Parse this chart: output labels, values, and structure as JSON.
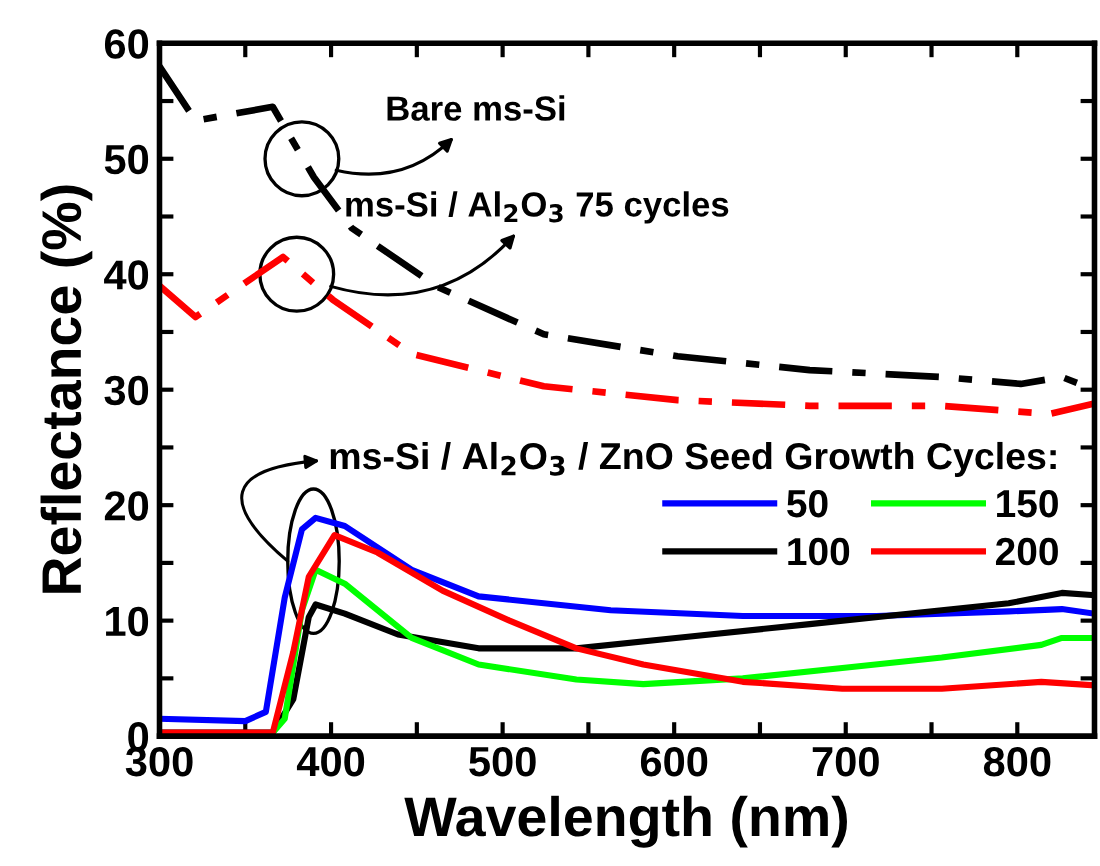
{
  "chart_data": {
    "type": "line",
    "xlabel": "Wavelength (nm)",
    "ylabel": "Reflectance (%)",
    "legend_title": "ms-Si / Al$_{2}$O$_{3}$ / ZnO Seed Growth Cycles:",
    "xlim": [
      300,
      845
    ],
    "ylim": [
      0,
      60
    ],
    "xticks": [
      300,
      {
        "value": 350,
        "label": null
      },
      400,
      {
        "value": 450,
        "label": null
      },
      500,
      {
        "value": 550,
        "label": null
      },
      600,
      {
        "value": 650,
        "label": null
      },
      700,
      {
        "value": 750,
        "label": null
      },
      800
    ],
    "yticks": [
      0,
      {
        "value": 5,
        "label": null
      },
      10,
      {
        "value": 15,
        "label": null
      },
      20,
      {
        "value": 25,
        "label": null
      },
      30,
      {
        "value": 35,
        "label": null
      },
      40,
      {
        "value": 45,
        "label": null
      },
      50,
      {
        "value": 55,
        "label": null
      },
      60
    ],
    "grid": false,
    "legend": "right",
    "marker": "none",
    "annotations": [
      {
        "text": "Bare ms-Si",
        "x": 383,
        "y": 50
      },
      {
        "text": "ms-Si / Al$_{2}$O$_{3}$ 75 cycles",
        "x": 380,
        "y": 40
      }
    ],
    "series": [
      {
        "color": "#000000",
        "line_style": "dashdot",
        "x": [
          300,
          321,
          366,
          390,
          412,
          462,
          524,
          602,
          679,
          756,
          802,
          826,
          845
        ],
        "values": [
          58,
          53.3,
          54.5,
          48.4,
          44,
          38.9,
          34.8,
          32.9,
          31.7,
          31.1,
          30.5,
          31.1,
          30
        ]
      },
      {
        "color": "#ff0000",
        "line_style": "dashdot",
        "x": [
          300,
          321,
          372,
          401,
          447,
          524,
          602,
          679,
          756,
          819,
          845
        ],
        "values": [
          39,
          36.3,
          41.5,
          37.8,
          33.1,
          30.3,
          29.1,
          28.6,
          28.6,
          27.9,
          28.8
        ]
      },
      {
        "name": "50",
        "color": "#0000ff",
        "line_style": "solid",
        "x": [
          300,
          350,
          362,
          373,
          383,
          391,
          408,
          447,
          486,
          563,
          640,
          718,
          795,
          826,
          845
        ],
        "values": [
          1.5,
          1.3,
          2.1,
          12,
          17.9,
          18.9,
          18.2,
          14.4,
          12.1,
          10.9,
          10.4,
          10.4,
          10.8,
          11,
          10.6
        ]
      },
      {
        "name": "100",
        "color": "#000000",
        "line_style": "solid",
        "x": [
          300,
          366,
          378,
          387,
          391,
          408,
          439,
          486,
          543,
          601,
          679,
          756,
          795,
          826,
          845
        ],
        "values": [
          0.3,
          0.3,
          3.2,
          10.3,
          11.4,
          10.6,
          8.8,
          7.6,
          7.6,
          8.5,
          9.7,
          10.9,
          11.5,
          12.4,
          12.2
        ]
      },
      {
        "name": "150",
        "color": "#00ff00",
        "line_style": "solid",
        "x": [
          366,
          373,
          383,
          391,
          408,
          447,
          486,
          543,
          582,
          640,
          698,
          756,
          814,
          826,
          845
        ],
        "values": [
          0.3,
          1.5,
          10.9,
          14.4,
          13.2,
          8.5,
          6.2,
          4.9,
          4.5,
          5,
          5.9,
          6.8,
          7.9,
          8.5,
          8.5
        ]
      },
      {
        "name": "200",
        "color": "#ff0000",
        "line_style": "solid",
        "x": [
          300,
          366,
          378,
          387,
          402,
          427,
          465,
          504,
          543,
          582,
          640,
          698,
          756,
          814,
          845
        ],
        "values": [
          0.3,
          0.3,
          7.3,
          13.8,
          17.4,
          15.9,
          12.6,
          10,
          7.6,
          6.2,
          4.7,
          4.1,
          4.1,
          4.7,
          4.4
        ]
      }
    ]
  }
}
